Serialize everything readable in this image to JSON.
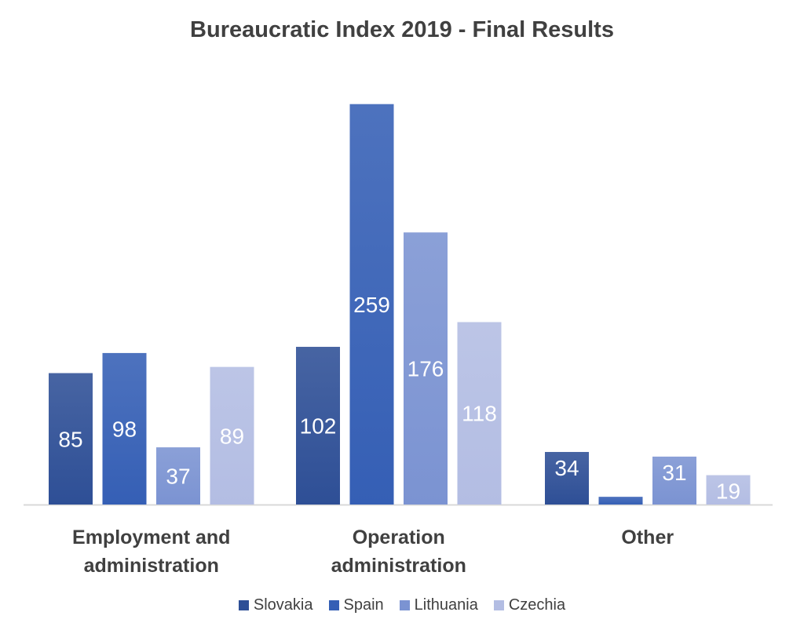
{
  "chart_data": {
    "type": "bar",
    "title": "Bureaucratic Index 2019 - Final Results",
    "xlabel": "",
    "ylabel": "",
    "ylim": [
      0,
      270
    ],
    "grid": false,
    "legend_position": "bottom",
    "categories": [
      [
        "Employment and",
        "administration"
      ],
      [
        "Operation",
        "administration"
      ],
      [
        "Other"
      ]
    ],
    "series": [
      {
        "name": "Slovakia",
        "color": "#2e4f96",
        "values": [
          85,
          102,
          34
        ],
        "labels": [
          "85",
          "102",
          "34"
        ]
      },
      {
        "name": "Spain",
        "color": "#355fb5",
        "values": [
          98,
          259,
          5
        ],
        "labels": [
          "98",
          "259",
          ""
        ]
      },
      {
        "name": "Lithuania",
        "color": "#7b93d2",
        "values": [
          37,
          176,
          31
        ],
        "labels": [
          "37",
          "176",
          "31"
        ]
      },
      {
        "name": "Czechia",
        "color": "#b3bde3",
        "values": [
          89,
          118,
          19
        ],
        "labels": [
          "89",
          "118",
          "19"
        ]
      }
    ]
  }
}
